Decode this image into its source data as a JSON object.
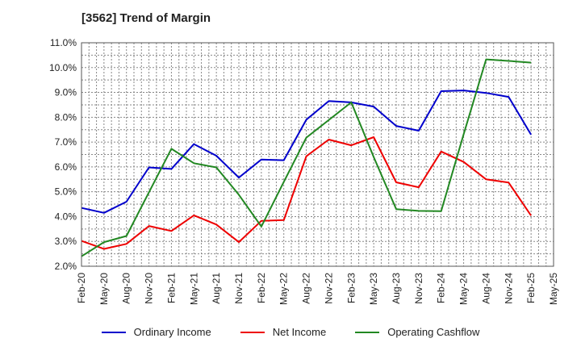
{
  "chart_data": {
    "type": "line",
    "title": "[3562]  Trend of Margin",
    "xlabel": "",
    "ylabel": "",
    "ylim": [
      2.0,
      11.0
    ],
    "y_ticks": [
      "2.0%",
      "3.0%",
      "4.0%",
      "5.0%",
      "6.0%",
      "7.0%",
      "8.0%",
      "9.0%",
      "10.0%",
      "11.0%"
    ],
    "x_tick_labels": [
      "Feb-20",
      "May-20",
      "Aug-20",
      "Nov-20",
      "Feb-21",
      "May-21",
      "Aug-21",
      "Nov-21",
      "Feb-22",
      "May-22",
      "Aug-22",
      "Nov-22",
      "Feb-23",
      "May-23",
      "Aug-23",
      "Nov-23",
      "Feb-24",
      "May-24",
      "Aug-24",
      "Nov-24",
      "Feb-25",
      "May-25"
    ],
    "categories": [
      "Feb-20",
      "May-20",
      "Aug-20",
      "Nov-20",
      "Feb-21",
      "May-21",
      "Aug-21",
      "Nov-21",
      "Feb-22",
      "May-22",
      "Aug-22",
      "Nov-22",
      "Feb-23",
      "May-23",
      "Aug-23",
      "Nov-23",
      "Feb-24",
      "May-24",
      "Aug-24",
      "Nov-24",
      "Feb-25"
    ],
    "grid": true,
    "legend_position": "bottom",
    "series": [
      {
        "name": "Ordinary Income",
        "color": "#0000cc",
        "values": [
          4.35,
          4.15,
          4.6,
          5.98,
          5.92,
          6.92,
          6.45,
          5.57,
          6.3,
          6.27,
          7.9,
          8.65,
          8.6,
          8.43,
          7.65,
          7.46,
          9.05,
          9.08,
          8.98,
          8.82,
          7.3
        ]
      },
      {
        "name": "Net Income",
        "color": "#ee0000",
        "values": [
          3.02,
          2.7,
          2.9,
          3.62,
          3.42,
          4.05,
          3.68,
          2.97,
          3.83,
          3.86,
          6.43,
          7.1,
          6.87,
          7.2,
          5.38,
          5.18,
          6.62,
          6.2,
          5.5,
          5.37,
          4.04
        ]
      },
      {
        "name": "Operating Cashflow",
        "color": "#228822",
        "values": [
          2.4,
          2.97,
          3.22,
          4.98,
          6.73,
          6.15,
          5.98,
          4.88,
          3.6,
          5.4,
          7.18,
          null,
          8.6,
          6.4,
          4.3,
          4.23,
          4.22,
          7.32,
          10.33,
          10.27,
          10.2
        ]
      }
    ]
  }
}
